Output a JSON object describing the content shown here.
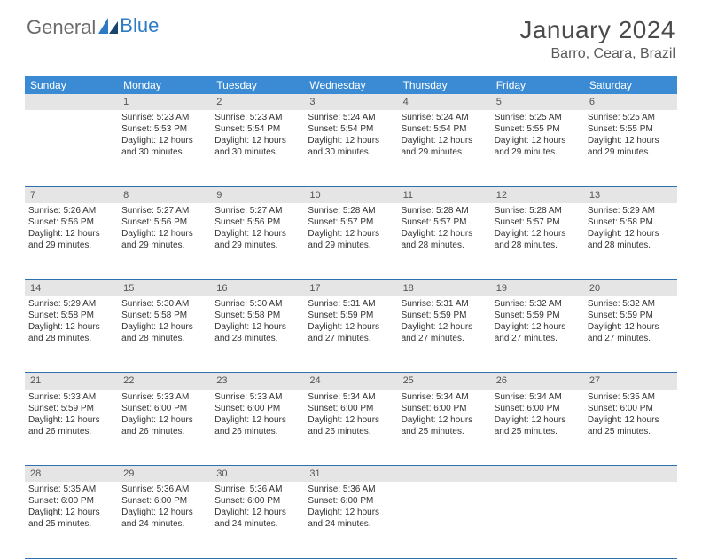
{
  "brand": {
    "part1": "General",
    "part2": "Blue"
  },
  "title": "January 2024",
  "location": "Barro, Ceara, Brazil",
  "colors": {
    "header_bg": "#3b8bd4",
    "header_text": "#ffffff",
    "day_bg": "#e5e5e5",
    "border": "#2d6fb0",
    "logo_gray": "#6b6b6b",
    "logo_blue": "#2d7bc4"
  },
  "dayNames": [
    "Sunday",
    "Monday",
    "Tuesday",
    "Wednesday",
    "Thursday",
    "Friday",
    "Saturday"
  ],
  "weeks": [
    {
      "nums": [
        "",
        "1",
        "2",
        "3",
        "4",
        "5",
        "6"
      ],
      "cells": [
        null,
        {
          "sr": "5:23 AM",
          "ss": "5:53 PM",
          "dl1": "12 hours",
          "dl2": "and 30 minutes."
        },
        {
          "sr": "5:23 AM",
          "ss": "5:54 PM",
          "dl1": "12 hours",
          "dl2": "and 30 minutes."
        },
        {
          "sr": "5:24 AM",
          "ss": "5:54 PM",
          "dl1": "12 hours",
          "dl2": "and 30 minutes."
        },
        {
          "sr": "5:24 AM",
          "ss": "5:54 PM",
          "dl1": "12 hours",
          "dl2": "and 29 minutes."
        },
        {
          "sr": "5:25 AM",
          "ss": "5:55 PM",
          "dl1": "12 hours",
          "dl2": "and 29 minutes."
        },
        {
          "sr": "5:25 AM",
          "ss": "5:55 PM",
          "dl1": "12 hours",
          "dl2": "and 29 minutes."
        }
      ]
    },
    {
      "nums": [
        "7",
        "8",
        "9",
        "10",
        "11",
        "12",
        "13"
      ],
      "cells": [
        {
          "sr": "5:26 AM",
          "ss": "5:56 PM",
          "dl1": "12 hours",
          "dl2": "and 29 minutes."
        },
        {
          "sr": "5:27 AM",
          "ss": "5:56 PM",
          "dl1": "12 hours",
          "dl2": "and 29 minutes."
        },
        {
          "sr": "5:27 AM",
          "ss": "5:56 PM",
          "dl1": "12 hours",
          "dl2": "and 29 minutes."
        },
        {
          "sr": "5:28 AM",
          "ss": "5:57 PM",
          "dl1": "12 hours",
          "dl2": "and 29 minutes."
        },
        {
          "sr": "5:28 AM",
          "ss": "5:57 PM",
          "dl1": "12 hours",
          "dl2": "and 28 minutes."
        },
        {
          "sr": "5:28 AM",
          "ss": "5:57 PM",
          "dl1": "12 hours",
          "dl2": "and 28 minutes."
        },
        {
          "sr": "5:29 AM",
          "ss": "5:58 PM",
          "dl1": "12 hours",
          "dl2": "and 28 minutes."
        }
      ]
    },
    {
      "nums": [
        "14",
        "15",
        "16",
        "17",
        "18",
        "19",
        "20"
      ],
      "cells": [
        {
          "sr": "5:29 AM",
          "ss": "5:58 PM",
          "dl1": "12 hours",
          "dl2": "and 28 minutes."
        },
        {
          "sr": "5:30 AM",
          "ss": "5:58 PM",
          "dl1": "12 hours",
          "dl2": "and 28 minutes."
        },
        {
          "sr": "5:30 AM",
          "ss": "5:58 PM",
          "dl1": "12 hours",
          "dl2": "and 28 minutes."
        },
        {
          "sr": "5:31 AM",
          "ss": "5:59 PM",
          "dl1": "12 hours",
          "dl2": "and 27 minutes."
        },
        {
          "sr": "5:31 AM",
          "ss": "5:59 PM",
          "dl1": "12 hours",
          "dl2": "and 27 minutes."
        },
        {
          "sr": "5:32 AM",
          "ss": "5:59 PM",
          "dl1": "12 hours",
          "dl2": "and 27 minutes."
        },
        {
          "sr": "5:32 AM",
          "ss": "5:59 PM",
          "dl1": "12 hours",
          "dl2": "and 27 minutes."
        }
      ]
    },
    {
      "nums": [
        "21",
        "22",
        "23",
        "24",
        "25",
        "26",
        "27"
      ],
      "cells": [
        {
          "sr": "5:33 AM",
          "ss": "5:59 PM",
          "dl1": "12 hours",
          "dl2": "and 26 minutes."
        },
        {
          "sr": "5:33 AM",
          "ss": "6:00 PM",
          "dl1": "12 hours",
          "dl2": "and 26 minutes."
        },
        {
          "sr": "5:33 AM",
          "ss": "6:00 PM",
          "dl1": "12 hours",
          "dl2": "and 26 minutes."
        },
        {
          "sr": "5:34 AM",
          "ss": "6:00 PM",
          "dl1": "12 hours",
          "dl2": "and 26 minutes."
        },
        {
          "sr": "5:34 AM",
          "ss": "6:00 PM",
          "dl1": "12 hours",
          "dl2": "and 25 minutes."
        },
        {
          "sr": "5:34 AM",
          "ss": "6:00 PM",
          "dl1": "12 hours",
          "dl2": "and 25 minutes."
        },
        {
          "sr": "5:35 AM",
          "ss": "6:00 PM",
          "dl1": "12 hours",
          "dl2": "and 25 minutes."
        }
      ]
    },
    {
      "nums": [
        "28",
        "29",
        "30",
        "31",
        "",
        "",
        ""
      ],
      "cells": [
        {
          "sr": "5:35 AM",
          "ss": "6:00 PM",
          "dl1": "12 hours",
          "dl2": "and 25 minutes."
        },
        {
          "sr": "5:36 AM",
          "ss": "6:00 PM",
          "dl1": "12 hours",
          "dl2": "and 24 minutes."
        },
        {
          "sr": "5:36 AM",
          "ss": "6:00 PM",
          "dl1": "12 hours",
          "dl2": "and 24 minutes."
        },
        {
          "sr": "5:36 AM",
          "ss": "6:00 PM",
          "dl1": "12 hours",
          "dl2": "and 24 minutes."
        },
        null,
        null,
        null
      ]
    }
  ],
  "labels": {
    "sunrise": "Sunrise:",
    "sunset": "Sunset:",
    "daylight": "Daylight:"
  }
}
